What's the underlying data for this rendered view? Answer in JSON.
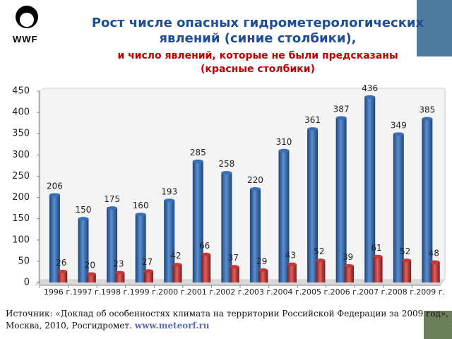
{
  "logo": "WWF",
  "source": {
    "text": "Источник: «Доклад об особенностях климата на территории Российской Федерации за 2009 год», Москва, 2010, Росгидромет.",
    "link": "www.meteorf.ru"
  },
  "chart_data": {
    "type": "bar",
    "title": "Рост числе опасных гидрометерологических явлений (синие столбики),",
    "subtitle": "и число явлений, которые не были предсказаны (красные столбики)",
    "categories": [
      "1996 г.",
      "1997 г.",
      "1998 г.",
      "1999 г.",
      "2000 г.",
      "2001 г.",
      "2002 г.",
      "2003 г.",
      "2004 г.",
      "2005 г.",
      "2006 г.",
      "2007 г.",
      "2008 г.",
      "2009 г."
    ],
    "series": [
      {
        "color": "#3a6fb5",
        "values": [
          206,
          150,
          175,
          160,
          193,
          285,
          258,
          220,
          310,
          361,
          387,
          436,
          349,
          385
        ]
      },
      {
        "color": "#c0393b",
        "values": [
          26,
          20,
          23,
          27,
          42,
          66,
          37,
          29,
          43,
          52,
          39,
          61,
          52,
          48
        ]
      }
    ],
    "ylim": [
      0,
      450
    ],
    "yticks": [
      0,
      50,
      100,
      150,
      200,
      250,
      300,
      350,
      400,
      450
    ]
  }
}
